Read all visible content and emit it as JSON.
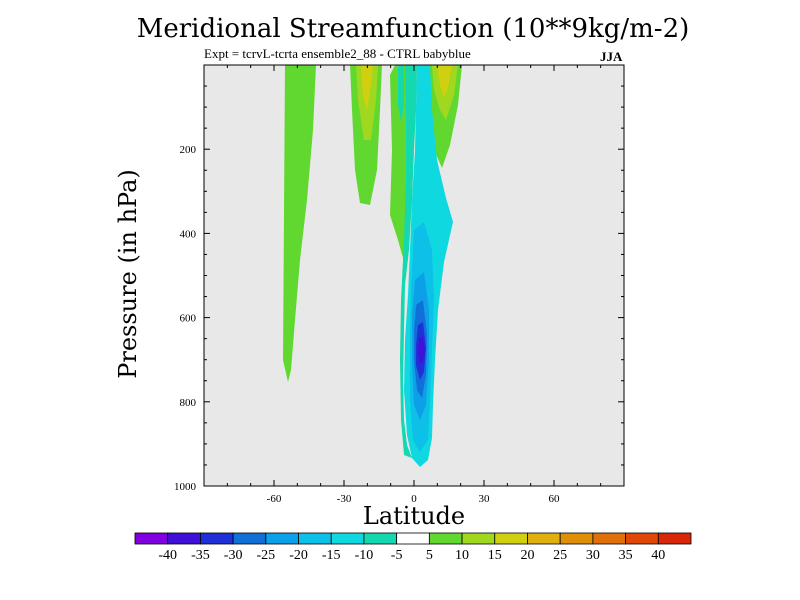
{
  "chart_data": {
    "type": "heatmap",
    "title": "Meridional Streamfunction (10**9kg/m-2)",
    "subtitle": "Expt = tcrvL-tcrta  ensemble2_88 - CTRL babyblue",
    "season": "JJA",
    "xlabel": "Latitude",
    "ylabel": "Pressure (in hPa)",
    "xlim": [
      -90,
      90
    ],
    "ylim": [
      1000,
      0
    ],
    "y_reversed": true,
    "x_ticks": [
      "-60",
      "-30",
      "0",
      "30",
      "60"
    ],
    "y_ticks": [
      "200",
      "400",
      "600",
      "800",
      "1000"
    ],
    "colorbar": {
      "labels": [
        "-40",
        "-35",
        "-30",
        "-25",
        "-20",
        "-15",
        "-10",
        "-5",
        "5",
        "10",
        "15",
        "20",
        "25",
        "30",
        "35",
        "40"
      ],
      "colors": [
        "#8000e0",
        "#4010d8",
        "#2030d8",
        "#1070d8",
        "#0ca0e8",
        "#0cc0e8",
        "#10d8e0",
        "#14d8b0",
        "#ffffff",
        "#60d830",
        "#a0d820",
        "#d0d010",
        "#e0b010",
        "#e09008",
        "#e07008",
        "#e04808",
        "#d82808"
      ]
    },
    "features": [
      {
        "name": "tropical negative cell",
        "min_value": -30,
        "approx_lat": 3,
        "approx_pressure_hPa": 680
      },
      {
        "name": "positive plume north of equator",
        "max_value": 20,
        "approx_lat": 12,
        "pressure_range_hPa": [
          0,
          250
        ]
      },
      {
        "name": "positive plume south of equator",
        "max_value": 20,
        "approx_lat": -20,
        "pressure_range_hPa": [
          0,
          330
        ]
      },
      {
        "name": "weak positive column",
        "value": 5,
        "approx_lat": -50,
        "pressure_range_hPa": [
          0,
          760
        ]
      }
    ]
  },
  "colors": {
    "plot_background": "#e8e8e8"
  }
}
